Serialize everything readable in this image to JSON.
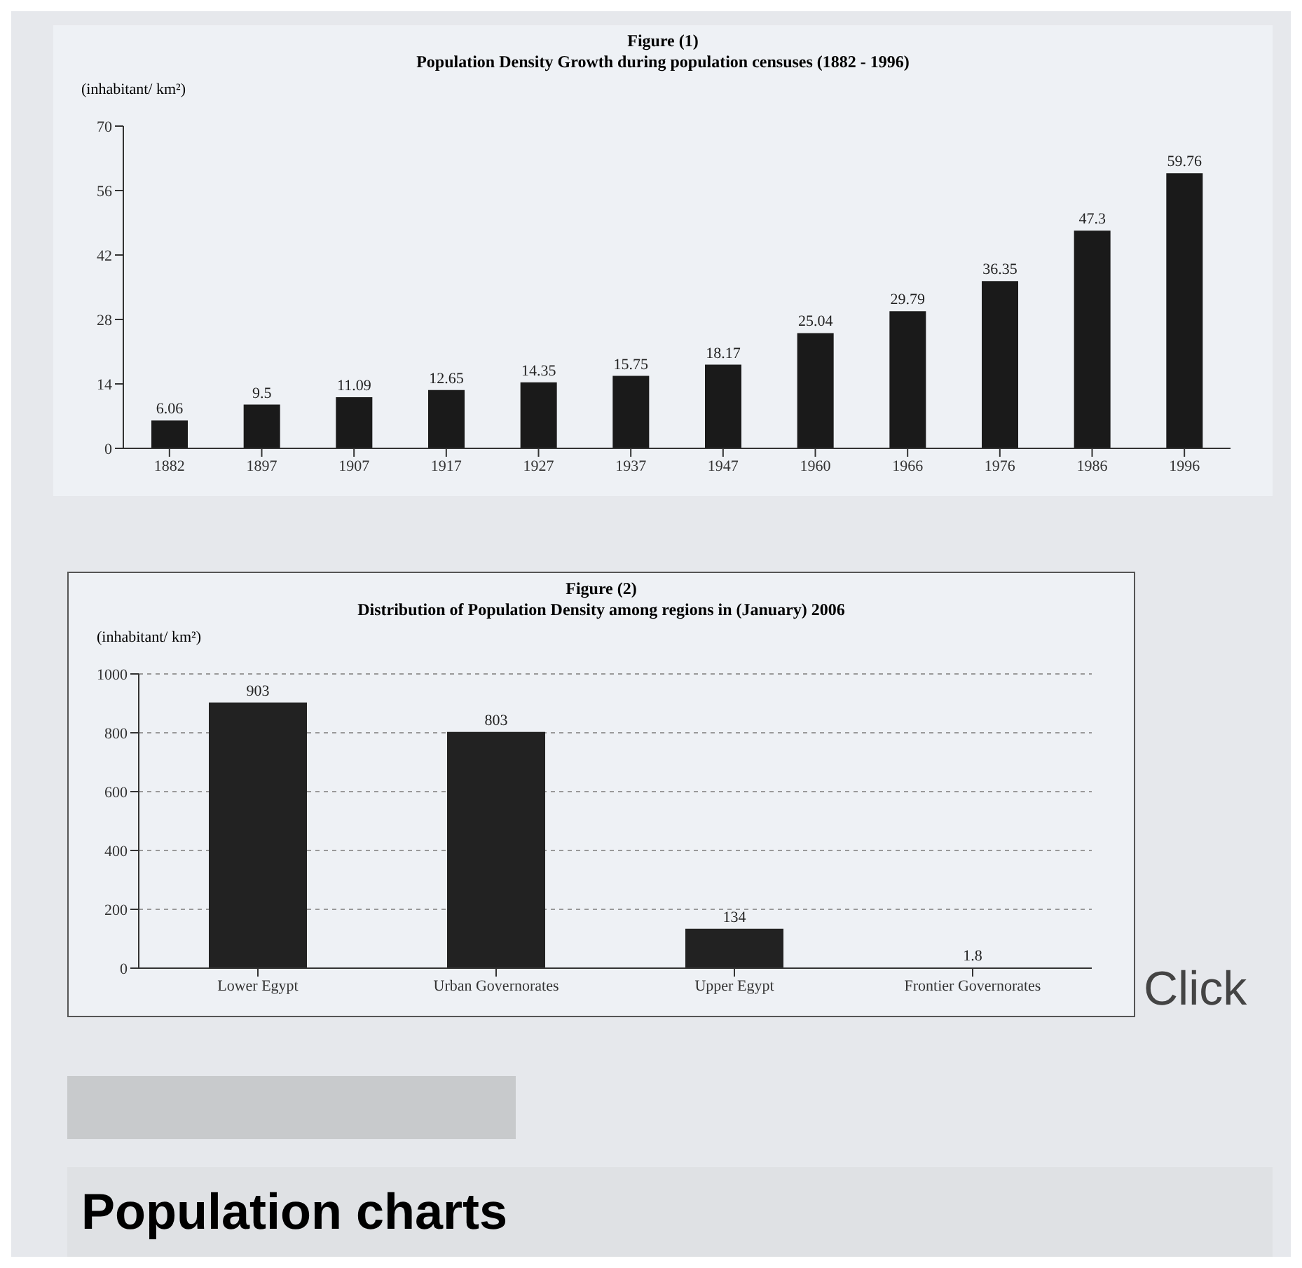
{
  "chart_data": [
    {
      "type": "bar",
      "title": "Figure (1)",
      "subtitle": "Population Density Growth during population censuses (1882 - 1996)",
      "ylabel": "(inhabitant/ km²)",
      "categories": [
        "1882",
        "1897",
        "1907",
        "1917",
        "1927",
        "1937",
        "1947",
        "1960",
        "1966",
        "1976",
        "1986",
        "1996"
      ],
      "values": [
        6.06,
        9.5,
        11.09,
        12.65,
        14.35,
        15.75,
        18.17,
        25.04,
        29.79,
        36.35,
        47.3,
        59.76
      ],
      "color": "#1a1a1a",
      "ylim": [
        0,
        70
      ],
      "yticks": [
        0,
        14,
        28,
        42,
        56,
        70
      ],
      "data_labels": true,
      "grid": false
    },
    {
      "type": "bar",
      "title": "Figure (2)",
      "subtitle": "Distribution of Population Density among regions in (January) 2006",
      "ylabel": "(inhabitant/ km²)",
      "categories": [
        "Lower Egypt",
        "Urban Governorates",
        "Upper Egypt",
        "Frontier Governorates"
      ],
      "values": [
        903,
        803,
        134,
        1.8
      ],
      "color": "#222222",
      "ylim": [
        0,
        1000
      ],
      "yticks": [
        0,
        200,
        400,
        600,
        800,
        1000
      ],
      "data_labels": true,
      "grid": "y",
      "annotations": [
        "Click",
        "Population charts"
      ]
    }
  ]
}
